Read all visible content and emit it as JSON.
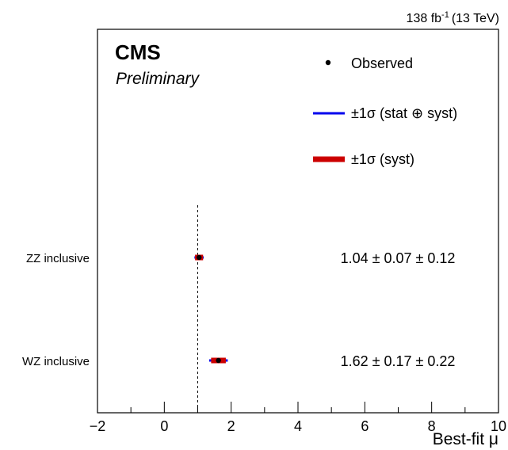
{
  "header": {
    "lumi_prefix": "138 fb",
    "lumi_sup": "-1",
    "lumi_suffix": "(13 TeV)",
    "experiment": "CMS",
    "status": "Preliminary"
  },
  "legend": {
    "placement": "top-right",
    "items": [
      {
        "label": "Observed",
        "marker": "dot",
        "color": "#000000"
      },
      {
        "label": "±1σ (stat ⊕ syst)",
        "marker": "thin-line",
        "color": "#0000ee"
      },
      {
        "label": "±1σ (syst)",
        "marker": "thick-line",
        "color": "#cc0000"
      }
    ]
  },
  "chart_data": {
    "type": "scatter",
    "xlabel": "Best-fit μ",
    "ylabel": "",
    "xlim": [
      -2,
      10
    ],
    "xticks": [
      -2,
      0,
      2,
      4,
      6,
      8,
      10
    ],
    "x_tick_labels": [
      "−2",
      "0",
      "2",
      "4",
      "6",
      "8",
      "10"
    ],
    "reference_line": 1.0,
    "grid": false,
    "categories": [
      "ZZ inclusive",
      "WZ inclusive"
    ],
    "series": [
      {
        "category": "ZZ inclusive",
        "value": 1.04,
        "stat": 0.07,
        "syst": 0.12,
        "label": "1.04 ± 0.07 ± 0.12"
      },
      {
        "category": "WZ inclusive",
        "value": 1.62,
        "stat": 0.17,
        "syst": 0.22,
        "label": "1.62 ± 0.17 ± 0.22"
      }
    ],
    "colors": {
      "total": "#0000ee",
      "syst": "#cc0000",
      "point": "#000000"
    }
  }
}
